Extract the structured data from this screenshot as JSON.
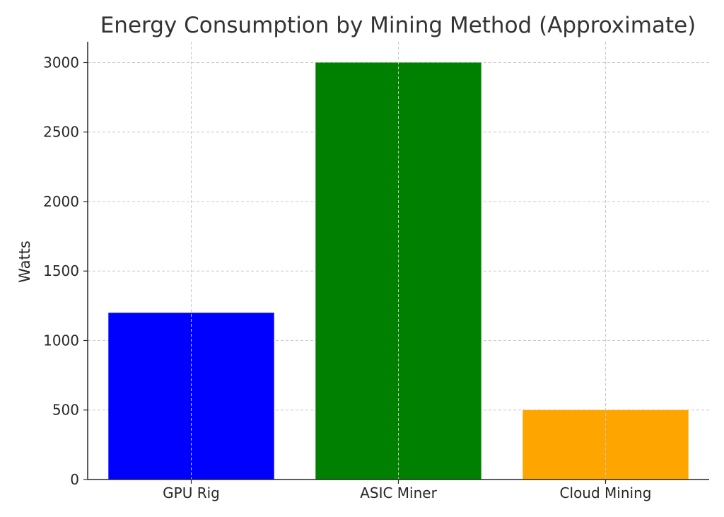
{
  "chart_data": {
    "type": "bar",
    "title": "Energy Consumption by Mining Method (Approximate)",
    "xlabel": "",
    "ylabel": "Watts",
    "categories": [
      "GPU Rig",
      "ASIC Miner",
      "Cloud Mining"
    ],
    "values": [
      1200,
      3000,
      500
    ],
    "colors": [
      "#0000ff",
      "#008000",
      "#ffa500"
    ],
    "ylim": [
      0,
      3150
    ],
    "yticks": [
      0,
      500,
      1000,
      1500,
      2000,
      2500,
      3000
    ],
    "grid": true,
    "grid_style": "dashed"
  }
}
